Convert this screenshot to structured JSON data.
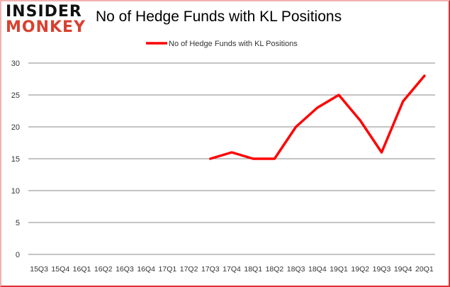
{
  "logo": {
    "line1": "INSIDER",
    "line2": "MONKEY"
  },
  "chart_data": {
    "type": "line",
    "title": "No of Hedge Funds with KL Positions",
    "xlabel": "",
    "ylabel": "",
    "categories": [
      "15Q3",
      "15Q4",
      "16Q1",
      "16Q2",
      "16Q3",
      "16Q4",
      "17Q1",
      "17Q2",
      "17Q3",
      "17Q4",
      "18Q1",
      "18Q2",
      "18Q3",
      "18Q4",
      "19Q1",
      "19Q2",
      "19Q3",
      "19Q4",
      "20Q1"
    ],
    "series": [
      {
        "name": "No of Hedge Funds with KL Positions",
        "color": "#ff0000",
        "values": [
          null,
          null,
          null,
          null,
          null,
          null,
          null,
          null,
          15,
          16,
          15,
          15,
          20,
          23,
          25,
          21,
          16,
          24,
          28
        ]
      }
    ],
    "ylim": [
      0,
      30
    ],
    "yticks": [
      0,
      5,
      10,
      15,
      20,
      25,
      30
    ],
    "grid": true,
    "legend": "top-center"
  }
}
